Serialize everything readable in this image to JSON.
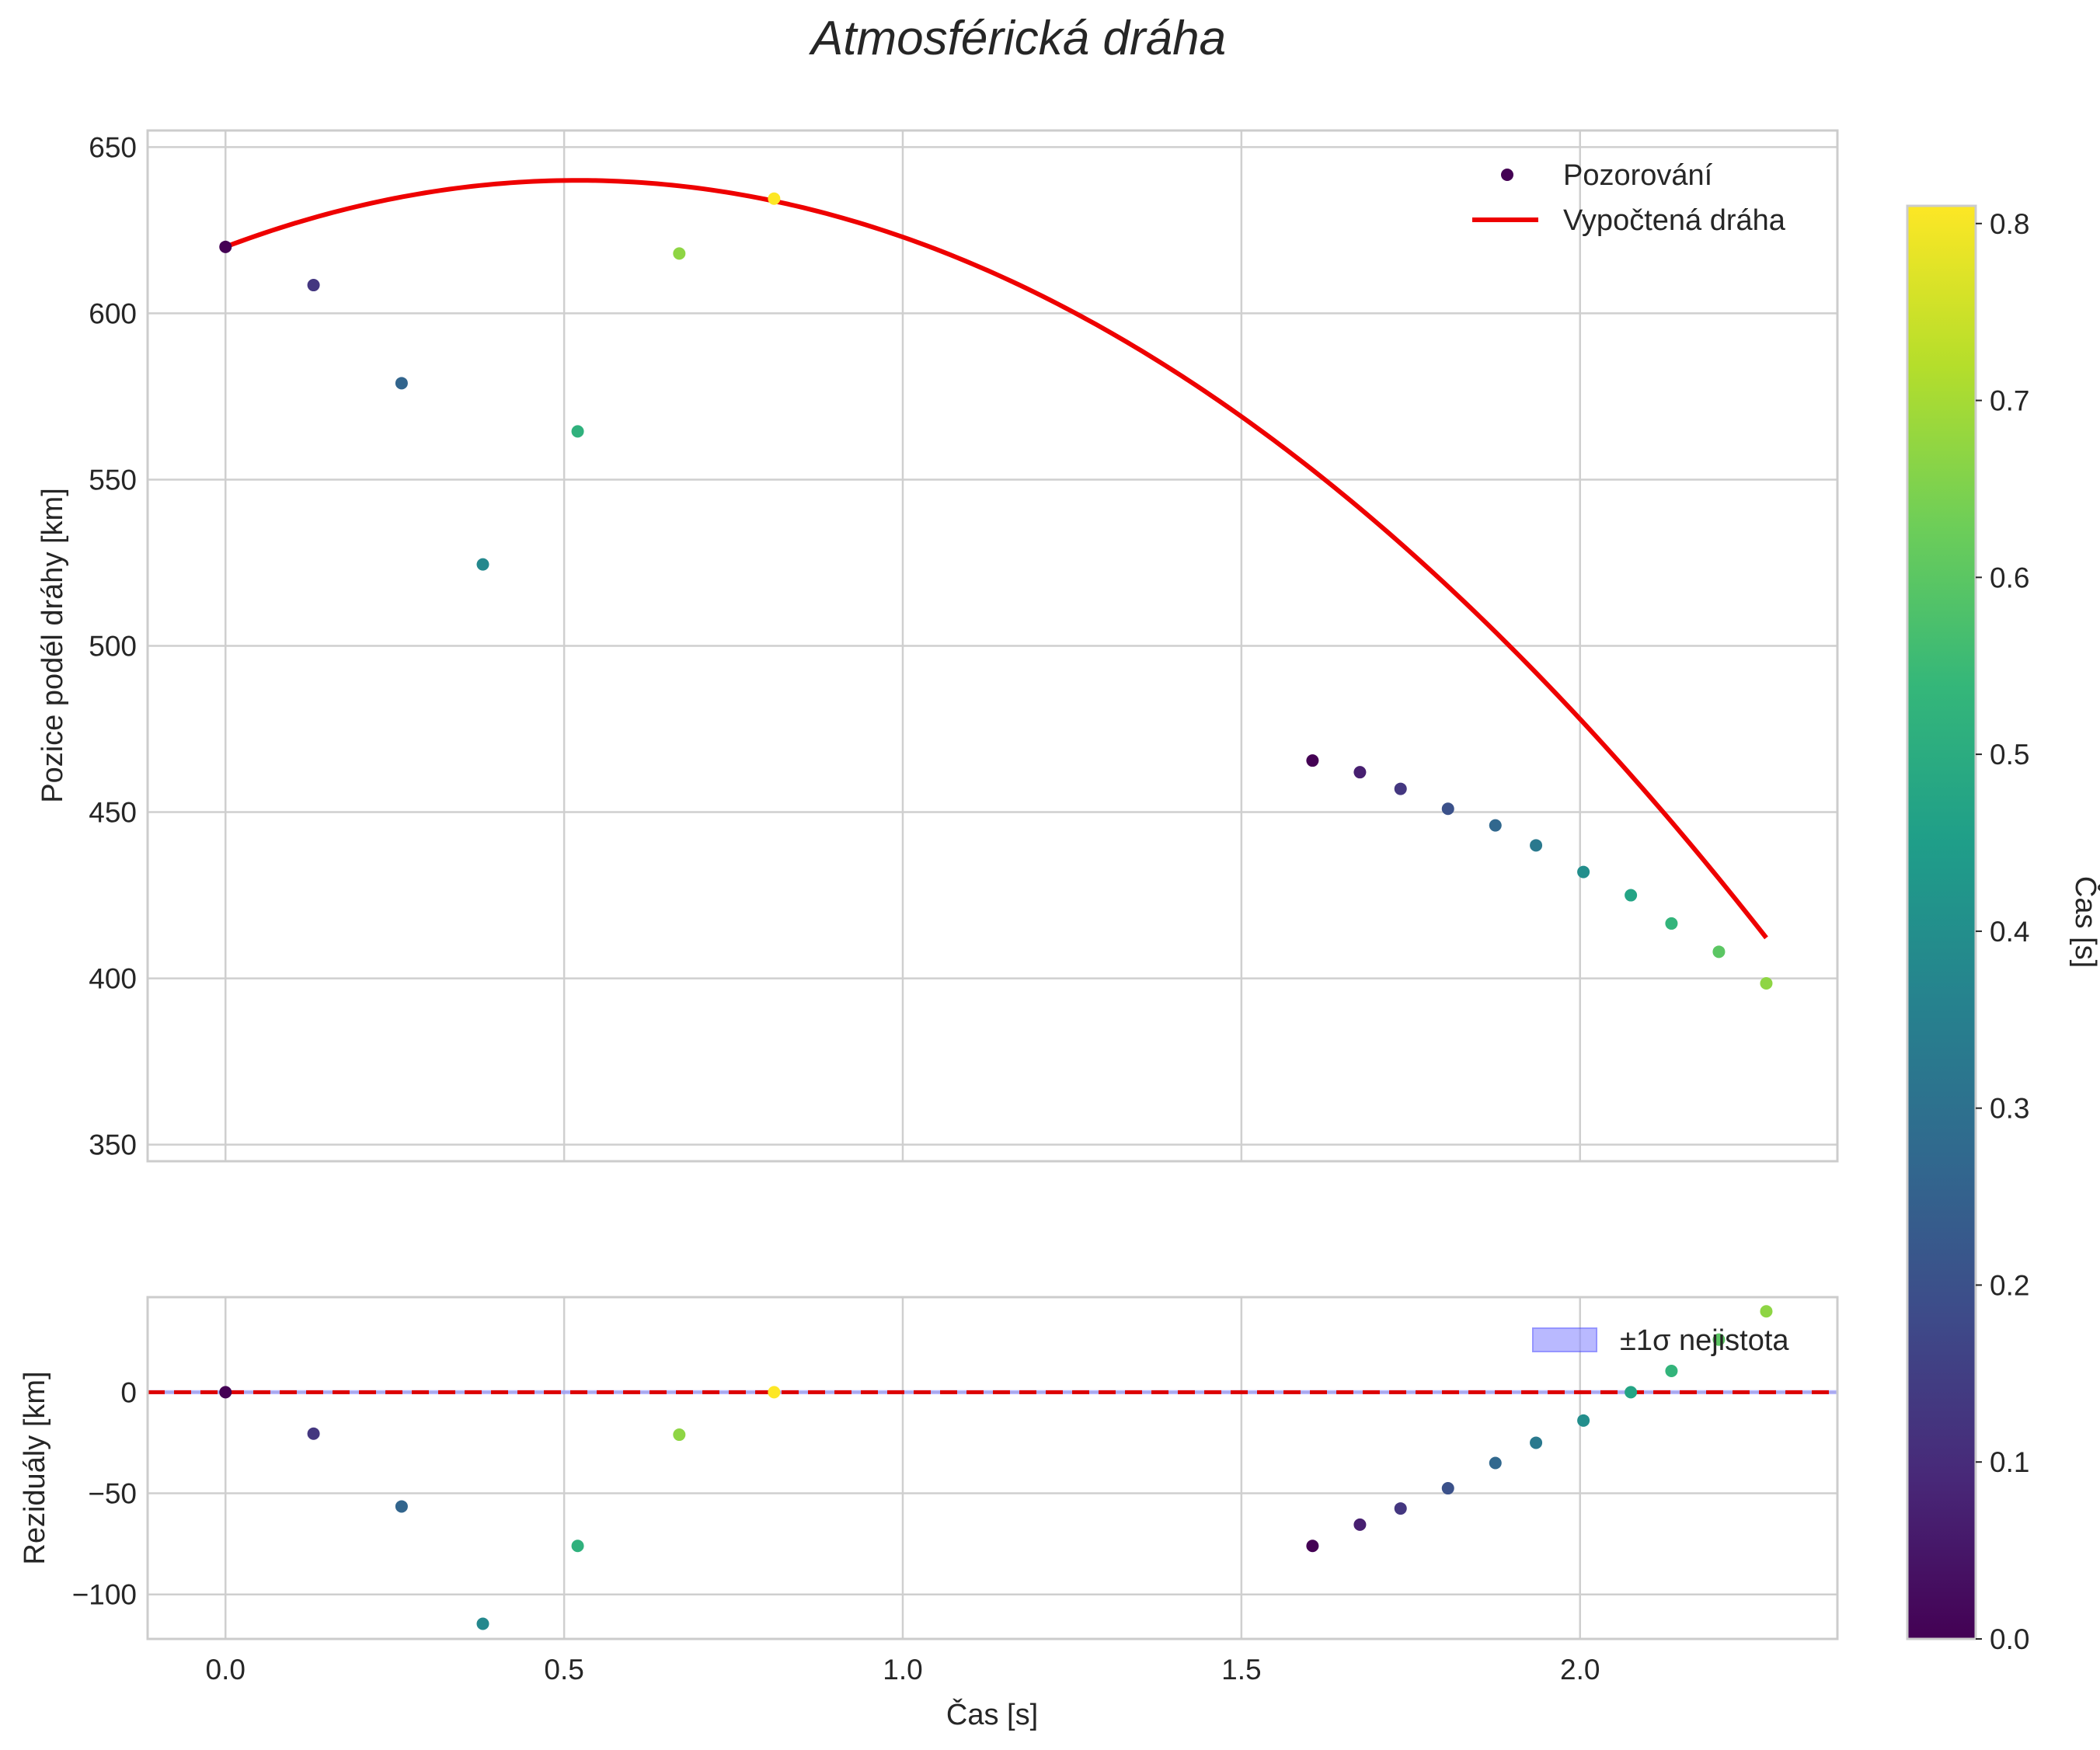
{
  "colors": {
    "fit_line": "#ee0000",
    "zero_line": "#dd0000",
    "band_fill": "#8c8cff",
    "viridis": [
      "#440154",
      "#482878",
      "#3e4a89",
      "#31688e",
      "#26828e",
      "#1f9e89",
      "#35b779",
      "#6ece58",
      "#b5de2b",
      "#fde725"
    ]
  },
  "chart_data": [
    {
      "id": "position",
      "type": "scatter",
      "title": "Atmosférická dráha",
      "xlabel": "",
      "ylabel": "Pozice podél dráhy [km]",
      "xlim": [
        -0.115,
        2.38
      ],
      "ylim": [
        345,
        655
      ],
      "x_ticks": [
        0.0,
        0.5,
        1.0,
        1.5,
        2.0
      ],
      "x_tick_labels": [
        "0.0",
        "0.5",
        "1.0",
        "1.5",
        "2.0"
      ],
      "y_ticks": [
        350,
        400,
        450,
        500,
        550,
        600,
        650
      ],
      "y_tick_labels": [
        "350",
        "400",
        "450",
        "500",
        "550",
        "600",
        "650"
      ],
      "legend": {
        "placement": "top-right",
        "entries": [
          "Pozorování",
          "Vypočtená dráha"
        ]
      },
      "series": [
        {
          "name": "Pozorování",
          "kind": "scatter",
          "points": [
            {
              "x": 0.0,
              "y": 620.0,
              "c": 0.0
            },
            {
              "x": 0.13,
              "y": 608.5,
              "c": 0.13
            },
            {
              "x": 0.26,
              "y": 579.0,
              "c": 0.26
            },
            {
              "x": 0.38,
              "y": 524.5,
              "c": 0.38
            },
            {
              "x": 0.52,
              "y": 564.5,
              "c": 0.52
            },
            {
              "x": 0.67,
              "y": 618.0,
              "c": 0.67
            },
            {
              "x": 0.81,
              "y": 634.5,
              "c": 0.81
            },
            {
              "x": 1.605,
              "y": 465.5,
              "c": 0.0
            },
            {
              "x": 1.675,
              "y": 462.0,
              "c": 0.07
            },
            {
              "x": 1.735,
              "y": 457.0,
              "c": 0.13
            },
            {
              "x": 1.805,
              "y": 451.0,
              "c": 0.2
            },
            {
              "x": 1.875,
              "y": 446.0,
              "c": 0.27
            },
            {
              "x": 1.935,
              "y": 440.0,
              "c": 0.33
            },
            {
              "x": 2.005,
              "y": 432.0,
              "c": 0.4
            },
            {
              "x": 2.075,
              "y": 425.0,
              "c": 0.47
            },
            {
              "x": 2.135,
              "y": 416.5,
              "c": 0.53
            },
            {
              "x": 2.205,
              "y": 408.0,
              "c": 0.6
            },
            {
              "x": 2.275,
              "y": 398.5,
              "c": 0.67
            }
          ]
        },
        {
          "name": "Vypočtená dráha",
          "kind": "line",
          "model": "quadratic",
          "x_range": [
            0.0,
            2.275
          ],
          "y0": 620.0,
          "vertex_x": 0.52,
          "vertex_y": 640.0
        }
      ]
    },
    {
      "id": "residuals",
      "type": "scatter",
      "title": "",
      "xlabel": "Čas [s]",
      "ylabel": "Reziduály [km]",
      "xlim": [
        -0.115,
        2.38
      ],
      "ylim": [
        -122,
        47
      ],
      "x_ticks": [
        0.0,
        0.5,
        1.0,
        1.5,
        2.0
      ],
      "x_tick_labels": [
        "0.0",
        "0.5",
        "1.0",
        "1.5",
        "2.0"
      ],
      "y_ticks": [
        -100,
        -50,
        0
      ],
      "y_tick_labels": [
        "−100",
        "−50",
        "0"
      ],
      "zero_line": 0,
      "band": {
        "name": "±1σ nejistota",
        "low": -1,
        "high": 1
      },
      "legend": {
        "placement": "top-right",
        "entries": [
          "±1σ nejistota"
        ]
      },
      "series": [
        {
          "name": "Reziduály",
          "kind": "scatter",
          "points": [
            {
              "x": 0.0,
              "y": 0.0,
              "c": 0.0
            },
            {
              "x": 0.13,
              "y": -20.5,
              "c": 0.13
            },
            {
              "x": 0.26,
              "y": -56.5,
              "c": 0.26
            },
            {
              "x": 0.38,
              "y": -114.5,
              "c": 0.38
            },
            {
              "x": 0.52,
              "y": -76.0,
              "c": 0.52
            },
            {
              "x": 0.67,
              "y": -21.0,
              "c": 0.67
            },
            {
              "x": 0.81,
              "y": 0.0,
              "c": 0.81
            },
            {
              "x": 1.605,
              "y": -76.0,
              "c": 0.0
            },
            {
              "x": 1.675,
              "y": -65.5,
              "c": 0.07
            },
            {
              "x": 1.735,
              "y": -57.5,
              "c": 0.13
            },
            {
              "x": 1.805,
              "y": -47.5,
              "c": 0.2
            },
            {
              "x": 1.875,
              "y": -35.0,
              "c": 0.27
            },
            {
              "x": 1.935,
              "y": -25.0,
              "c": 0.33
            },
            {
              "x": 2.005,
              "y": -14.0,
              "c": 0.4
            },
            {
              "x": 2.075,
              "y": 0.0,
              "c": 0.47
            },
            {
              "x": 2.135,
              "y": 10.5,
              "c": 0.53
            },
            {
              "x": 2.205,
              "y": 26.0,
              "c": 0.6
            },
            {
              "x": 2.275,
              "y": 40.0,
              "c": 0.67
            }
          ]
        }
      ]
    },
    {
      "id": "colorbar",
      "type": "colorbar",
      "label": "Čas [s]",
      "range": [
        0.0,
        0.81
      ],
      "ticks": [
        0.0,
        0.1,
        0.2,
        0.3,
        0.4,
        0.5,
        0.6,
        0.7,
        0.8
      ],
      "tick_labels": [
        "0.0",
        "0.1",
        "0.2",
        "0.3",
        "0.4",
        "0.5",
        "0.6",
        "0.7",
        "0.8"
      ]
    }
  ]
}
